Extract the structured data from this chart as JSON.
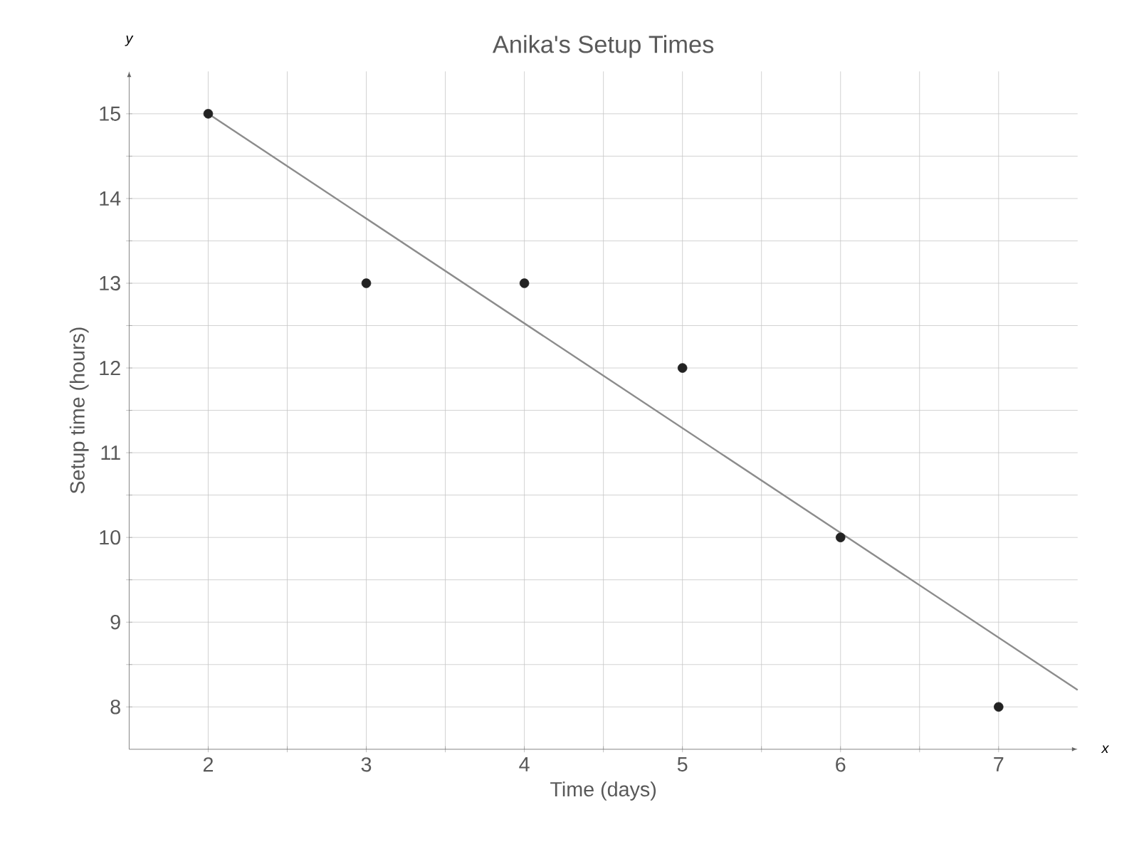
{
  "chart_data": {
    "type": "scatter",
    "title": "Anika's Setup Times",
    "xlabel": "Time (days)",
    "ylabel": "Setup time (hours)",
    "annotations": [
      "x",
      "y"
    ],
    "series": [
      {
        "color": "#222222",
        "x": [
          2,
          3,
          4,
          5,
          6,
          7
        ],
        "values": [
          15,
          13,
          13,
          12,
          10,
          8
        ]
      },
      {
        "type": "line",
        "color": "#8c8c8c",
        "line_style": "solid",
        "marker": "none",
        "x": [
          2,
          7.5
        ],
        "values": [
          15,
          8.2
        ]
      }
    ],
    "xlim": [
      1.5,
      7.5
    ],
    "ylim": [
      7.5,
      15.5
    ],
    "xticks": [
      2,
      {
        "value": 2.5,
        "label": null
      },
      3,
      {
        "value": 3.5,
        "label": null
      },
      4,
      {
        "value": 4.5,
        "label": null
      },
      5,
      {
        "value": 5.5,
        "label": null
      },
      6,
      {
        "value": 6.5,
        "label": null
      },
      7
    ],
    "yticks": [
      8,
      {
        "value": 8.5,
        "label": null
      },
      9,
      {
        "value": 9.5,
        "label": null
      },
      10,
      {
        "value": 10.5,
        "label": null
      },
      11,
      {
        "value": 11.5,
        "label": null
      },
      12,
      {
        "value": 12.5,
        "label": null
      },
      13,
      {
        "value": 13.5,
        "label": null
      },
      14,
      {
        "value": 14.5,
        "label": null
      },
      15
    ],
    "grid": true,
    "marker": "circle"
  }
}
